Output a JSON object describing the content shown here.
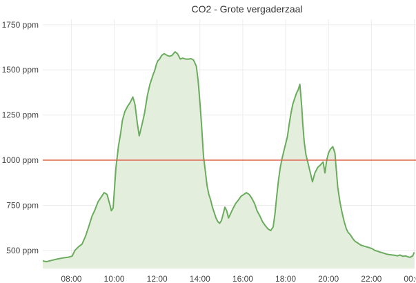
{
  "chart_data": {
    "type": "area",
    "title": "CO2 - Grote vergaderzaal",
    "xlabel": "",
    "ylabel": "",
    "y_ticks": [
      "500 ppm",
      "750 ppm",
      "1000 ppm",
      "1250 ppm",
      "1500 ppm",
      "1750 ppm"
    ],
    "y_tick_values": [
      500,
      750,
      1000,
      1250,
      1500,
      1750
    ],
    "x_ticks": [
      "08:00",
      "10:00",
      "12:00",
      "14:00",
      "16:00",
      "18:00",
      "20:00",
      "22:00",
      "00:00"
    ],
    "x_tick_values": [
      480,
      600,
      720,
      840,
      960,
      1080,
      1200,
      1320,
      1440
    ],
    "xlim": [
      400,
      1445
    ],
    "ylim": [
      400,
      1780
    ],
    "grid": true,
    "line_color": "#6aab5e",
    "fill_color": "#e3efdc",
    "threshold": {
      "value": 1000,
      "color": "#e0664e"
    },
    "series": [
      {
        "x": [
          400,
          410,
          425,
          440,
          455,
          470,
          482,
          490,
          500,
          510,
          520,
          530,
          538,
          545,
          555,
          565,
          572,
          580,
          587,
          592,
          597,
          605,
          612,
          618,
          623,
          630,
          638,
          645,
          652,
          658,
          665,
          670,
          677,
          685,
          693,
          700,
          705,
          710,
          714,
          718,
          722,
          727,
          733,
          740,
          748,
          755,
          762,
          770,
          777,
          785,
          792,
          800,
          808,
          815,
          822,
          830,
          835,
          840,
          845,
          850,
          855,
          860,
          865,
          870,
          875,
          880,
          885,
          890,
          895,
          900,
          905,
          910,
          915,
          920,
          925,
          932,
          940,
          948,
          955,
          963,
          970,
          978,
          985,
          993,
          1000,
          1008,
          1015,
          1022,
          1030,
          1038,
          1045,
          1050,
          1055,
          1060,
          1065,
          1070,
          1075,
          1080,
          1085,
          1090,
          1095,
          1100,
          1105,
          1110,
          1115,
          1120,
          1125,
          1128,
          1132,
          1137,
          1142,
          1148,
          1155,
          1162,
          1170,
          1178,
          1185,
          1190,
          1195,
          1200,
          1205,
          1212,
          1218,
          1222,
          1226,
          1232,
          1238,
          1244,
          1250,
          1255,
          1260,
          1265,
          1270,
          1275,
          1283,
          1290,
          1298,
          1306,
          1315,
          1322,
          1330,
          1338,
          1346,
          1355,
          1362,
          1370,
          1378,
          1386,
          1393,
          1400,
          1408,
          1416,
          1422,
          1428,
          1436,
          1440
        ],
        "values": [
          442,
          438,
          445,
          452,
          458,
          462,
          468,
          500,
          520,
          535,
          580,
          640,
          690,
          720,
          770,
          800,
          820,
          810,
          760,
          720,
          735,
          960,
          1080,
          1150,
          1220,
          1270,
          1300,
          1320,
          1350,
          1310,
          1200,
          1135,
          1190,
          1260,
          1360,
          1420,
          1450,
          1480,
          1500,
          1530,
          1550,
          1560,
          1580,
          1590,
          1580,
          1575,
          1580,
          1600,
          1590,
          1560,
          1565,
          1560,
          1560,
          1562,
          1555,
          1520,
          1440,
          1320,
          1180,
          1020,
          940,
          860,
          810,
          780,
          740,
          710,
          680,
          660,
          650,
          665,
          700,
          740,
          720,
          680,
          700,
          730,
          760,
          780,
          800,
          810,
          820,
          810,
          790,
          760,
          720,
          690,
          660,
          640,
          620,
          610,
          630,
          700,
          800,
          890,
          960,
          1010,
          1050,
          1090,
          1130,
          1200,
          1260,
          1310,
          1340,
          1370,
          1390,
          1420,
          1300,
          1200,
          1100,
          1030,
          990,
          940,
          880,
          930,
          960,
          975,
          990,
          930,
          1000,
          1040,
          1060,
          1075,
          1040,
          940,
          850,
          770,
          710,
          660,
          620,
          600,
          590,
          575,
          560,
          550,
          540,
          530,
          525,
          520,
          515,
          510,
          500,
          495,
          490,
          485,
          480,
          477,
          475,
          473,
          470,
          475,
          468,
          470,
          465,
          462,
          470,
          490
        ]
      }
    ]
  }
}
